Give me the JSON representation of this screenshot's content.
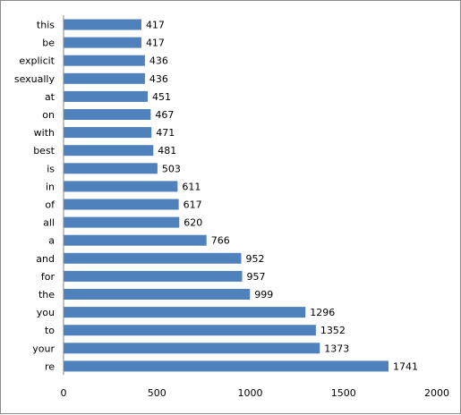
{
  "chart_data": {
    "type": "bar",
    "orientation": "horizontal",
    "categories": [
      "this",
      "be",
      "explicit",
      "sexually",
      "at",
      "on",
      "with",
      "best",
      "is",
      "in",
      "of",
      "all",
      "a",
      "and",
      "for",
      "the",
      "you",
      "to",
      "your",
      "re"
    ],
    "values": [
      417,
      417,
      436,
      436,
      451,
      467,
      471,
      481,
      503,
      611,
      617,
      620,
      766,
      952,
      957,
      999,
      1296,
      1352,
      1373,
      1741
    ],
    "value_labels": [
      "417",
      "417",
      "436",
      "436",
      "451",
      "467",
      "471",
      "481",
      "503",
      "611",
      "617",
      "620",
      "766",
      "952",
      "957",
      "999",
      "1296",
      "1352",
      "1373",
      "1741"
    ],
    "xlim": [
      0,
      2000
    ],
    "x_ticks": [
      0,
      500,
      1000,
      1500,
      2000
    ],
    "x_tick_labels": [
      "0",
      "500",
      "1000",
      "1500",
      "2000"
    ],
    "title": "",
    "xlabel": "",
    "ylabel": "",
    "grid": false,
    "legend": "none",
    "bar_color": "#4F81BD"
  }
}
